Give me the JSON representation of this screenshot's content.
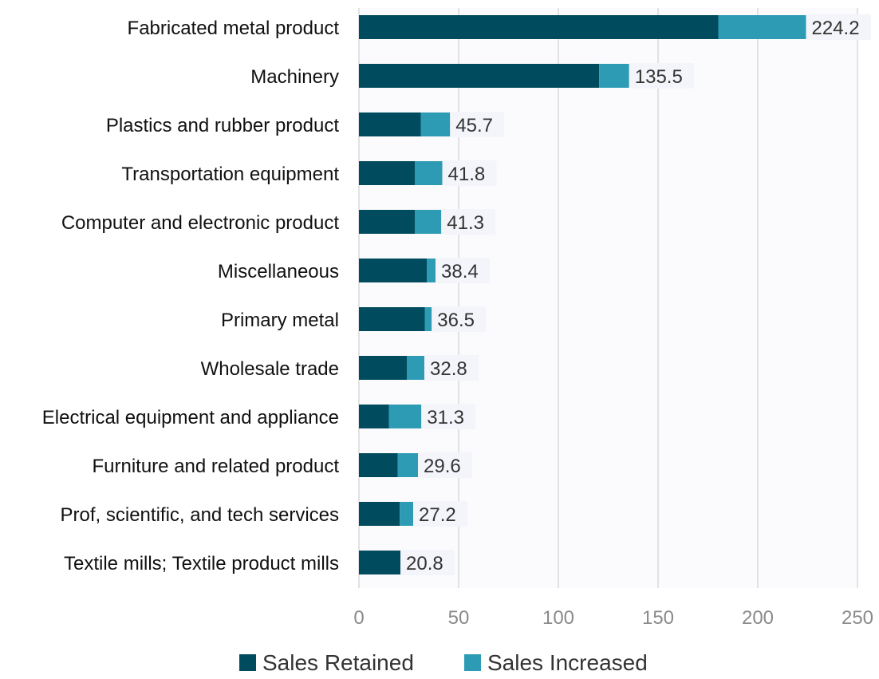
{
  "chart_data": {
    "type": "bar",
    "orientation": "horizontal",
    "stacked": true,
    "title": "",
    "xlabel": "",
    "ylabel": "",
    "xlim": [
      0,
      250
    ],
    "xticks": [
      0,
      50,
      100,
      150,
      200,
      250
    ],
    "grid": true,
    "legend_position": "bottom",
    "categories": [
      "Fabricated metal product",
      "Machinery",
      "Plastics and rubber product",
      "Transportation equipment",
      "Computer and electronic product",
      "Miscellaneous",
      "Primary metal",
      "Wholesale trade",
      "Electrical equipment and appliance",
      "Furniture and related product",
      "Prof, scientific, and tech services",
      "Textile mills; Textile product mills"
    ],
    "series": [
      {
        "name": "Sales Retained",
        "color": "#004c5e",
        "values": [
          180.2,
          120.5,
          31.0,
          28.0,
          28.0,
          34.0,
          33.0,
          24.0,
          15.0,
          19.5,
          20.5,
          20.8
        ]
      },
      {
        "name": "Sales Increased",
        "color": "#2e9bb5",
        "values": [
          44.0,
          15.0,
          14.7,
          13.8,
          13.3,
          4.4,
          3.5,
          8.8,
          16.3,
          10.1,
          6.7,
          0
        ]
      }
    ],
    "totals": [
      "224.2",
      "135.5",
      "45.7",
      "41.8",
      "41.3",
      "38.4",
      "36.5",
      "32.8",
      "31.3",
      "29.6",
      "27.2",
      "20.8"
    ],
    "colors": {
      "plot_background": "#fbfbfd",
      "gridline": "#d9d9d9",
      "label_backdrop": "#f3f5fa"
    }
  }
}
